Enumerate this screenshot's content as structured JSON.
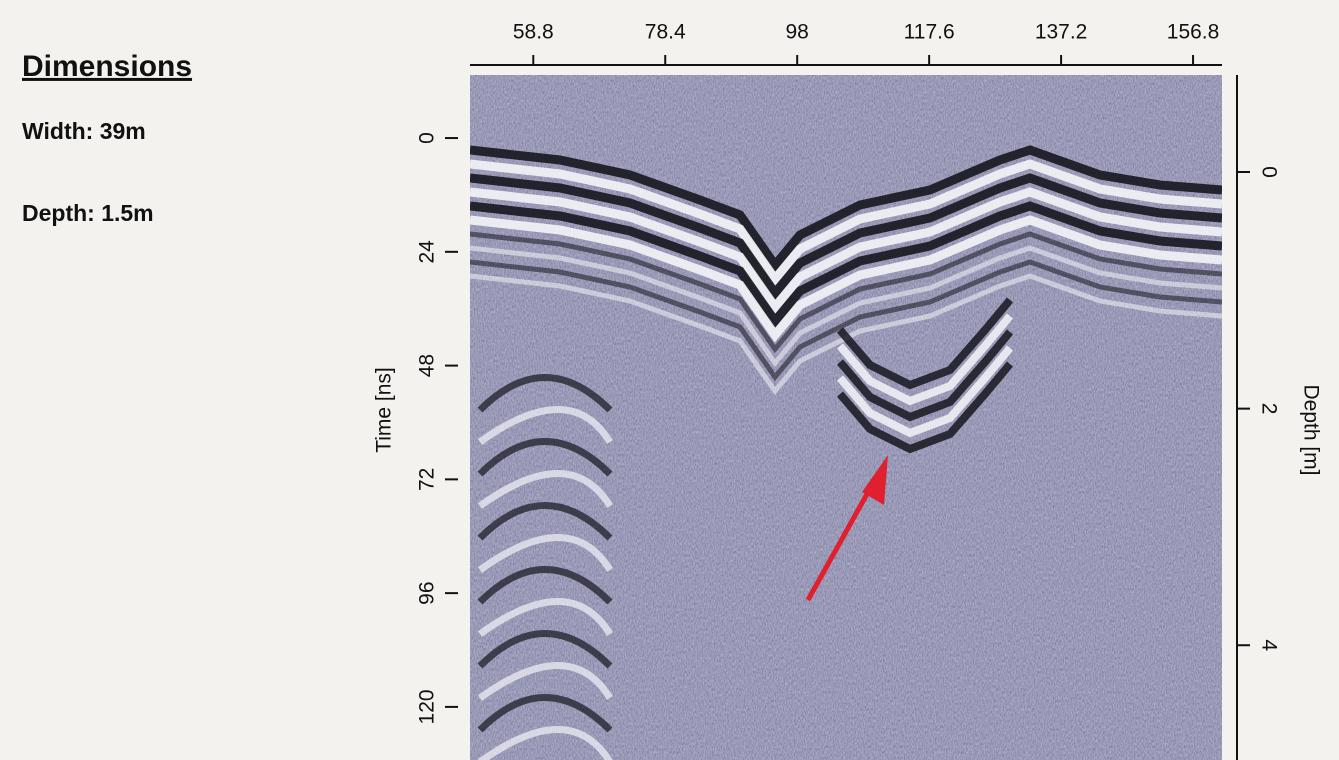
{
  "chart_data": {
    "type": "radargram",
    "annotations": [
      "Dimensions",
      "Width: 39m",
      "Depth: 1.5m"
    ],
    "ylabel": "Time [ns]",
    "y2label": "Depth [m]",
    "xlim": [
      49.4,
      161.1
    ],
    "xticks": [
      58.8,
      78.4,
      98,
      117.6,
      137.2,
      156.8
    ],
    "ylim": [
      131.2,
      -13.3
    ],
    "yticks": [
      0,
      24,
      48,
      72,
      96,
      120
    ],
    "y2lim": [
      4.97,
      -0.82
    ],
    "y2ticks": [
      0,
      2,
      4
    ]
  }
}
